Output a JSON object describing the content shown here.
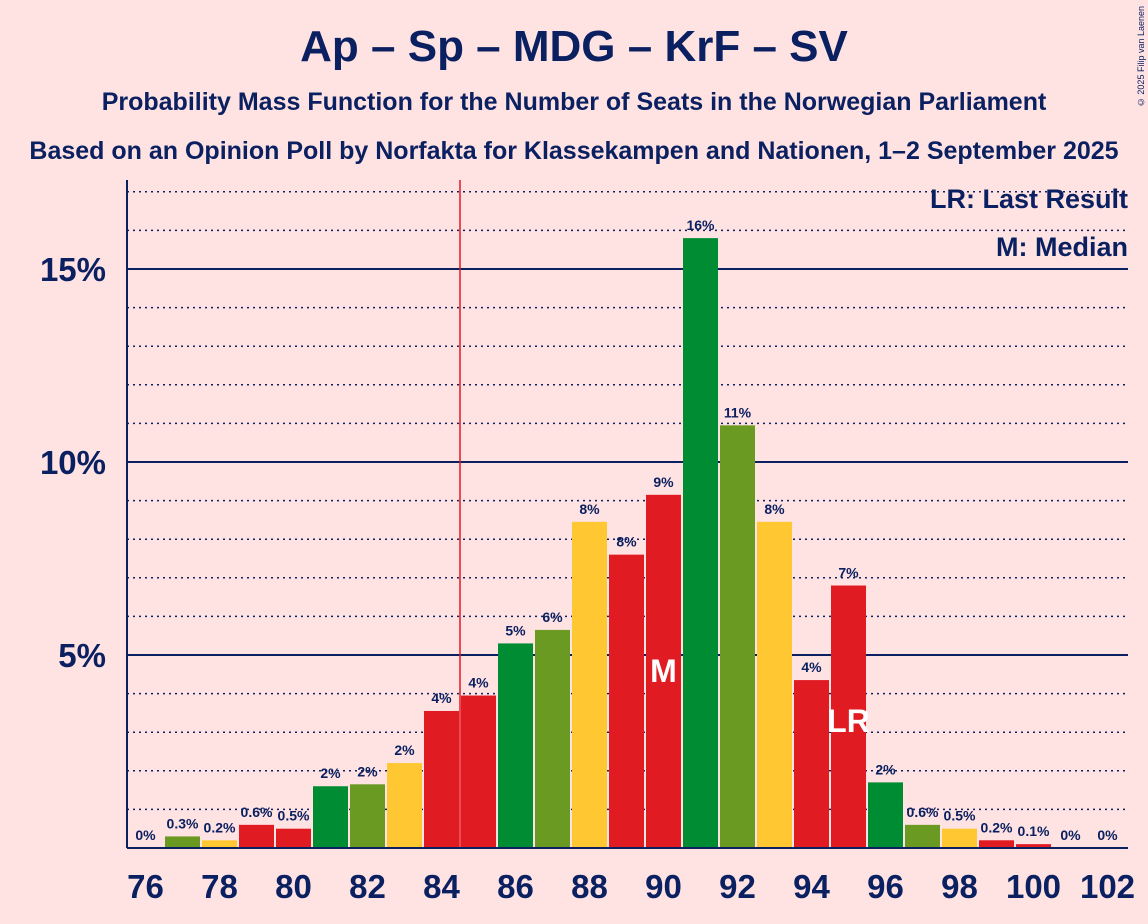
{
  "title": "Ap – Sp – MDG – KrF – SV",
  "subtitle": "Probability Mass Function for the Number of Seats in the Norwegian Parliament",
  "source": "Based on an Opinion Poll by Norfakta for Klassekampen and Nationen, 1–2 September 2025",
  "copyright": "© 2025 Filip van Laenen",
  "colors": {
    "background": "#ffe3e3",
    "text": "#0b2060",
    "red": "#e01b22",
    "green": "#008c32",
    "olive": "#6a9a22",
    "yellow": "#ffc832",
    "last_result_line": "#e01b22"
  },
  "chart_data": {
    "type": "bar",
    "title": "Ap – Sp – MDG – KrF – SV",
    "xlabel": "",
    "ylabel": "",
    "ylim": [
      0,
      17
    ],
    "x_ticks": [
      "76",
      "78",
      "80",
      "82",
      "84",
      "86",
      "88",
      "90",
      "92",
      "94",
      "96",
      "98",
      "100",
      "102"
    ],
    "y_ticks": [
      {
        "value": 5,
        "label": "5%"
      },
      {
        "value": 10,
        "label": "10%"
      },
      {
        "value": 15,
        "label": "15%"
      }
    ],
    "minor_gridlines_step": 1,
    "categories": [
      76,
      77,
      78,
      79,
      80,
      81,
      82,
      83,
      84,
      85,
      86,
      87,
      88,
      89,
      90,
      91,
      92,
      93,
      94,
      95,
      96,
      97,
      98,
      99,
      100,
      101,
      102
    ],
    "values": [
      0,
      0.3,
      0.2,
      0.6,
      0.5,
      1.6,
      1.65,
      2.2,
      3.55,
      3.95,
      5.3,
      5.65,
      8.45,
      7.6,
      9.15,
      15.8,
      10.95,
      8.45,
      4.35,
      6.8,
      1.7,
      0.6,
      0.5,
      0.2,
      0.1,
      0,
      0
    ],
    "labels": [
      "0%",
      "0.3%",
      "0.2%",
      "0.6%",
      "0.5%",
      "2%",
      "2%",
      "2%",
      "4%",
      "4%",
      "5%",
      "6%",
      "8%",
      "8%",
      "9%",
      "16%",
      "11%",
      "8%",
      "4%",
      "7%",
      "2%",
      "0.6%",
      "0.5%",
      "0.2%",
      "0.1%",
      "0%",
      "0%"
    ],
    "bar_colors": [
      "red",
      "olive",
      "yellow",
      "red",
      "red",
      "green",
      "olive",
      "yellow",
      "red",
      "red",
      "green",
      "olive",
      "yellow",
      "red",
      "red",
      "green",
      "olive",
      "yellow",
      "red",
      "red",
      "green",
      "olive",
      "yellow",
      "red",
      "red",
      "green",
      "olive"
    ],
    "last_result": 95,
    "median": 90,
    "majority_line": 84.5,
    "median_marker": "M",
    "last_result_marker": "LR",
    "legend": [
      "LR: Last Result",
      "M: Median"
    ],
    "legend_position": "top-right"
  }
}
